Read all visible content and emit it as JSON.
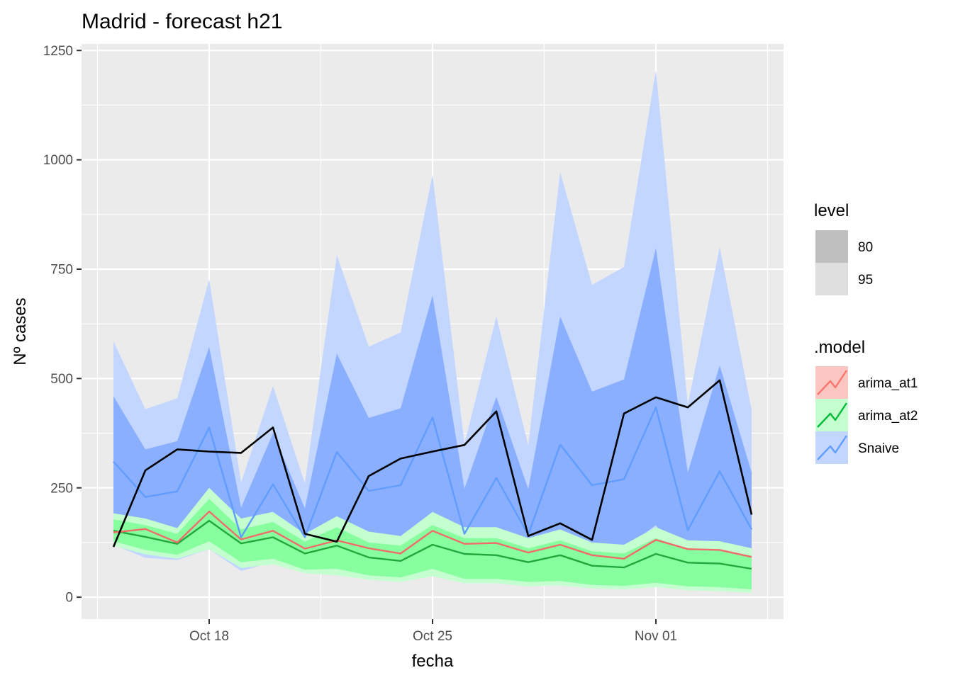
{
  "chart_data": {
    "type": "area",
    "title": "Madrid - forecast h21",
    "xlabel": "fecha",
    "ylabel": "Nº cases",
    "x": [
      "2020-10-15",
      "2020-10-16",
      "2020-10-17",
      "2020-10-18",
      "2020-10-19",
      "2020-10-20",
      "2020-10-21",
      "2020-10-22",
      "2020-10-23",
      "2020-10-24",
      "2020-10-25",
      "2020-10-26",
      "2020-10-27",
      "2020-10-28",
      "2020-10-29",
      "2020-10-30",
      "2020-10-31",
      "2020-11-01",
      "2020-11-02",
      "2020-11-03",
      "2020-11-04"
    ],
    "x_ticks": [
      {
        "date": "2020-10-18",
        "label": "Oct 18"
      },
      {
        "date": "2020-10-25",
        "label": "Oct 25"
      },
      {
        "date": "2020-11-01",
        "label": "Nov 01"
      }
    ],
    "xlim": [
      "2020-10-14",
      "2020-11-05"
    ],
    "ylim": [
      -50,
      1265
    ],
    "y_ticks": [
      0,
      250,
      500,
      750,
      1000,
      1250
    ],
    "grid": true,
    "legend_placement": "right",
    "actual": {
      "color": "#000000",
      "values": [
        115,
        290,
        338,
        333,
        330,
        388,
        145,
        127,
        277,
        317,
        333,
        348,
        425,
        140,
        169,
        131,
        420,
        457,
        434,
        496,
        189
      ]
    },
    "series": [
      {
        "name": "Snaive",
        "color": "#619CFF",
        "line_color": "#619CFF",
        "fill80": "#8AAFFF",
        "fill95": "#C3D6FF",
        "mean": [
          310,
          229,
          242,
          388,
          137,
          258,
          137,
          332,
          243,
          256,
          411,
          145,
          273,
          143,
          349,
          256,
          270,
          434,
          153,
          288,
          155
        ],
        "lo80": [
          186,
          108,
          111,
          235,
          85,
          138,
          80,
          125,
          112,
          115,
          192,
          70,
          115,
          72,
          130,
          100,
          110,
          165,
          60,
          110,
          75
        ],
        "hi80": [
          460,
          338,
          357,
          572,
          205,
          375,
          203,
          557,
          410,
          432,
          690,
          248,
          458,
          247,
          642,
          470,
          498,
          798,
          285,
          530,
          285
        ],
        "lo95": [
          120,
          90,
          85,
          110,
          60,
          80,
          55,
          60,
          55,
          55,
          60,
          45,
          45,
          40,
          45,
          35,
          35,
          40,
          30,
          30,
          25
        ],
        "hi95": [
          585,
          430,
          455,
          727,
          262,
          483,
          260,
          782,
          573,
          605,
          966,
          351,
          642,
          347,
          972,
          714,
          755,
          1205,
          440,
          800,
          428
        ]
      },
      {
        "name": "arima_at2",
        "color": "#00BA38",
        "line_color": "#22A83A",
        "fill80": "#87FF9F",
        "fill95": "#C3FFCF",
        "mean": [
          152,
          138,
          122,
          175,
          123,
          137,
          100,
          118,
          91,
          83,
          120,
          99,
          96,
          80,
          96,
          72,
          68,
          99,
          79,
          77,
          65
        ],
        "lo80": [
          128,
          108,
          97,
          128,
          80,
          88,
          63,
          65,
          50,
          45,
          65,
          42,
          42,
          35,
          37,
          28,
          26,
          33,
          25,
          23,
          18
        ],
        "hi80": [
          178,
          165,
          145,
          225,
          155,
          172,
          127,
          160,
          125,
          118,
          165,
          135,
          135,
          112,
          130,
          105,
          100,
          135,
          110,
          108,
          95
        ],
        "lo95": [
          118,
          98,
          88,
          110,
          67,
          75,
          55,
          50,
          40,
          35,
          48,
          32,
          32,
          25,
          27,
          20,
          18,
          23,
          16,
          14,
          10
        ],
        "hi95": [
          192,
          180,
          158,
          250,
          180,
          195,
          145,
          185,
          150,
          140,
          195,
          160,
          160,
          135,
          155,
          125,
          120,
          160,
          130,
          128,
          112
        ]
      },
      {
        "name": "arima_at1",
        "color": "#F8766D",
        "line_color": "#F26B6B",
        "mean": [
          148,
          156,
          125,
          196,
          132,
          152,
          111,
          130,
          112,
          100,
          152,
          122,
          124,
          102,
          120,
          96,
          88,
          131,
          110,
          108,
          92
        ]
      }
    ],
    "legends": [
      {
        "title": "level",
        "items": [
          {
            "label": "80",
            "swatch": "#BFBFBF"
          },
          {
            "label": "95",
            "swatch": "#DEDEDE"
          }
        ]
      },
      {
        "title": ".model",
        "items": [
          {
            "label": "arima_at1",
            "color": "#F8766D",
            "fill": "#FBC6C2"
          },
          {
            "label": "arima_at2",
            "color": "#00BA38",
            "fill": "#C3FFCF"
          },
          {
            "label": "Snaive",
            "color": "#619CFF",
            "fill": "#C3D6FF"
          }
        ]
      }
    ]
  }
}
